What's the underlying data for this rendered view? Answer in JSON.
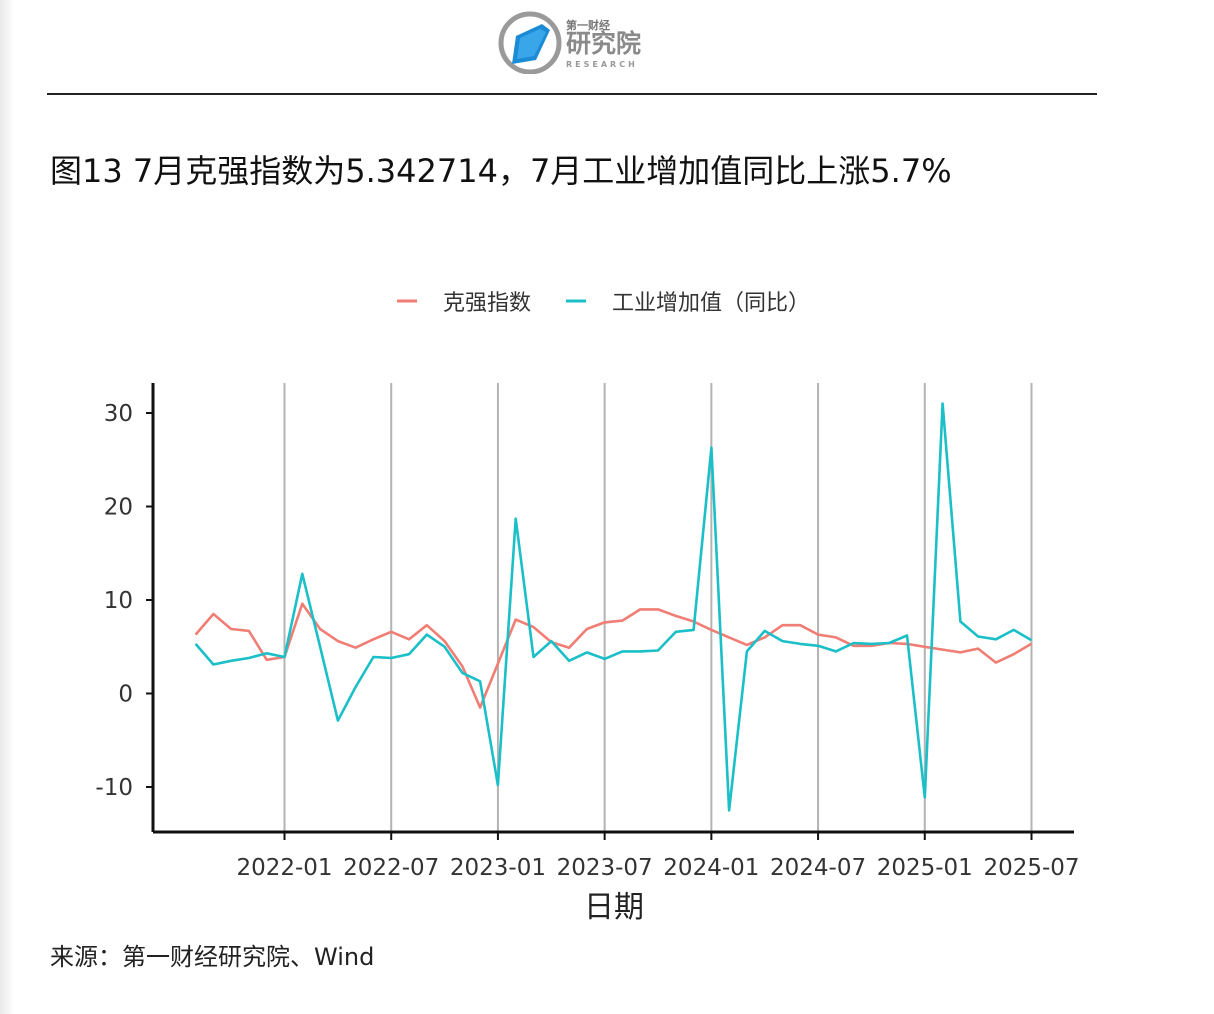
{
  "header": {
    "logo_top": "第一财经",
    "logo_main": "研究院",
    "logo_sub": "RESEARCH"
  },
  "title": "图13 7月克强指数为5.342714，7月工业增加值同比上涨5.7%",
  "source": "来源：第一财经研究院、Wind",
  "colors": {
    "keqiang": "#F07E75",
    "industrial": "#1BBFC8",
    "axis": "#111111",
    "grid": "#b3b3b3"
  },
  "chart_data": {
    "type": "line",
    "title": "",
    "xlabel": "日期",
    "ylabel": "",
    "ylim": [
      -15,
      33
    ],
    "xlim": [
      "2021-07",
      "2025-08"
    ],
    "y_ticks": [
      30,
      20,
      10,
      0,
      -10
    ],
    "y_tick_labels": [
      "30",
      "20",
      "10",
      "0",
      "-10"
    ],
    "x_ticks": [
      "2022-01",
      "2022-07",
      "2023-01",
      "2023-07",
      "2024-01",
      "2024-07",
      "2025-01",
      "2025-07"
    ],
    "grid": "vertical major lines at x ticks",
    "legend": {
      "placement": "top-center",
      "entries": [
        "克强指数",
        "工业增加值（同比）"
      ]
    },
    "x": [
      "2021-08",
      "2021-09",
      "2021-10",
      "2021-11",
      "2021-12",
      "2022-01",
      "2022-02",
      "2022-03",
      "2022-04",
      "2022-05",
      "2022-06",
      "2022-07",
      "2022-08",
      "2022-09",
      "2022-10",
      "2022-11",
      "2022-12",
      "2023-01",
      "2023-02",
      "2023-03",
      "2023-04",
      "2023-05",
      "2023-06",
      "2023-07",
      "2023-08",
      "2023-09",
      "2023-10",
      "2023-11",
      "2023-12",
      "2024-01",
      "2024-02",
      "2024-03",
      "2024-04",
      "2024-05",
      "2024-06",
      "2024-07",
      "2024-08",
      "2024-09",
      "2024-10",
      "2024-11",
      "2024-12",
      "2025-01",
      "2025-02",
      "2025-03",
      "2025-04",
      "2025-05",
      "2025-06",
      "2025-07"
    ],
    "series": [
      {
        "name": "克强指数",
        "values": [
          6.3,
          8.5,
          6.9,
          6.7,
          3.6,
          3.9,
          9.6,
          6.9,
          5.6,
          4.9,
          5.8,
          6.6,
          5.8,
          7.3,
          5.6,
          2.9,
          -1.5,
          3.2,
          7.9,
          7.1,
          5.5,
          4.9,
          6.9,
          7.6,
          7.8,
          9.0,
          9.0,
          8.3,
          7.7,
          6.8,
          6.0,
          5.2,
          6.0,
          7.3,
          7.3,
          6.3,
          6.0,
          5.1,
          5.1,
          5.4,
          5.3,
          5.0,
          4.7,
          4.4,
          4.8,
          3.3,
          4.2,
          5.34
        ]
      },
      {
        "name": "工业增加值（同比）",
        "values": [
          5.3,
          3.1,
          3.5,
          3.8,
          4.3,
          3.9,
          12.8,
          5.0,
          -2.9,
          0.7,
          3.9,
          3.8,
          4.2,
          6.3,
          5.0,
          2.2,
          1.3,
          -9.8,
          18.7,
          3.9,
          5.6,
          3.5,
          4.4,
          3.7,
          4.5,
          4.5,
          4.6,
          6.6,
          6.8,
          26.3,
          -12.5,
          4.5,
          6.7,
          5.6,
          5.3,
          5.1,
          4.5,
          5.4,
          5.3,
          5.4,
          6.2,
          -11.1,
          31.0,
          7.7,
          6.1,
          5.8,
          6.8,
          5.7
        ]
      }
    ]
  }
}
